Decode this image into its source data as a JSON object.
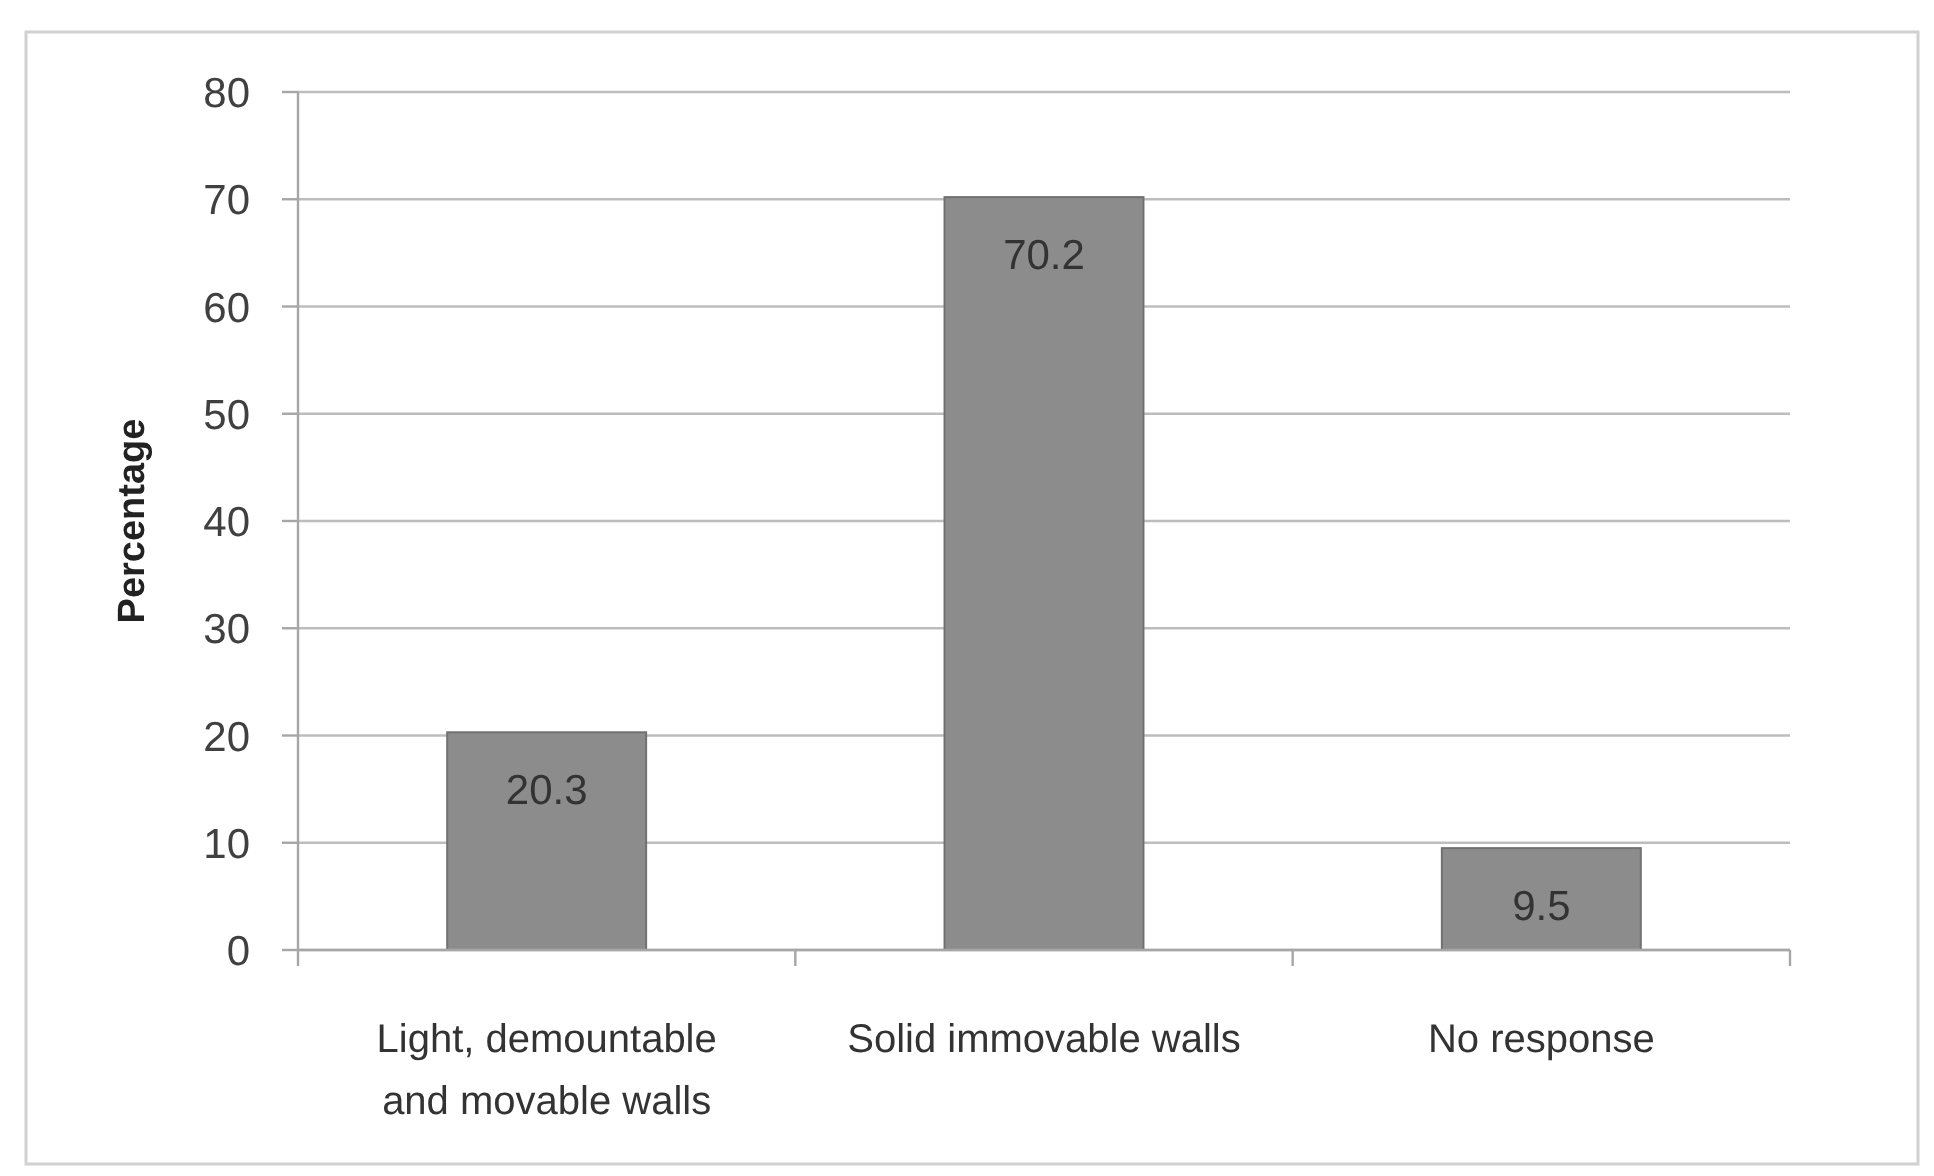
{
  "chart_data": {
    "type": "bar",
    "ylabel": "Percentage",
    "categories": [
      "Light, demountable and movable walls",
      "Solid immovable walls",
      "No response"
    ],
    "values": [
      20.3,
      70.2,
      9.5
    ],
    "color": "#8c8c8c",
    "ylim": [
      0,
      80
    ],
    "yticks": [
      0,
      10,
      20,
      30,
      40,
      50,
      60,
      70,
      80
    ],
    "grid": "y",
    "data_labels": true
  }
}
